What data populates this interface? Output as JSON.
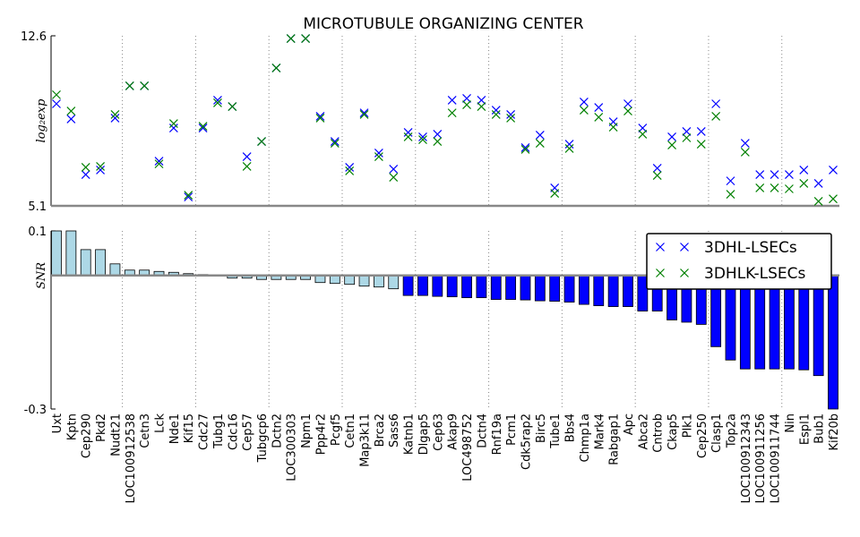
{
  "chart_data": [
    {
      "type": "scatter",
      "title": "MICROTUBULE ORGANIZING CENTER",
      "ylabel": "log₂exp",
      "ylim": [
        5.1,
        12.6
      ],
      "yticks": [
        5.1,
        12.6
      ],
      "legend": "upper right",
      "series": [
        {
          "name": "3DHL-LSECs",
          "color": "#0000ff",
          "values": [
            9.6,
            8.93,
            6.48,
            6.68,
            8.97,
            10.39,
            10.39,
            7.07,
            8.53,
            5.49,
            8.53,
            9.76,
            9.48,
            7.27,
            7.94,
            11.18,
            12.48,
            12.48,
            9.05,
            7.94,
            6.8,
            9.2,
            7.43,
            6.72,
            8.34,
            8.14,
            8.26,
            9.76,
            9.84,
            9.76,
            9.32,
            9.13,
            7.67,
            8.22,
            5.89,
            7.82,
            9.68,
            9.44,
            8.81,
            9.6,
            8.53,
            6.76,
            8.14,
            8.38,
            8.38,
            9.6,
            6.2,
            7.86,
            6.48,
            6.48,
            6.48,
            6.68,
            6.09,
            6.68
          ]
        },
        {
          "name": "3DHLK-LSECs",
          "color": "#008000",
          "values": [
            10.0,
            9.28,
            6.8,
            6.84,
            9.13,
            10.39,
            10.39,
            6.95,
            8.73,
            5.57,
            8.61,
            9.64,
            9.48,
            6.84,
            7.94,
            11.18,
            12.48,
            12.48,
            8.97,
            7.86,
            6.64,
            9.13,
            7.27,
            6.36,
            8.14,
            8.02,
            7.94,
            9.2,
            9.56,
            9.48,
            9.13,
            8.97,
            7.59,
            7.86,
            5.65,
            7.63,
            9.32,
            9.01,
            8.57,
            9.28,
            8.26,
            6.44,
            7.78,
            8.1,
            7.82,
            9.05,
            5.61,
            7.47,
            5.89,
            5.89,
            5.85,
            6.09,
            5.3,
            5.41
          ]
        }
      ]
    },
    {
      "type": "bar",
      "ylabel": "SNR",
      "ylim": [
        -0.3,
        0.1
      ],
      "yticks": [
        -0.3,
        0.1
      ],
      "categories": [
        "Uxt",
        "Kptn",
        "Cep290",
        "Pkd2",
        "Nudt21",
        "LOC100912538",
        "Cetn3",
        "Lck",
        "Nde1",
        "Kif15",
        "Cdc27",
        "Tubg1",
        "Cdc16",
        "Cep57",
        "Tubgcp6",
        "Dctn2",
        "LOC300303",
        "Npm1",
        "Ppp4r2",
        "Pcgf5",
        "Cetn1",
        "Map3k11",
        "Brca2",
        "Sass6",
        "Katnb1",
        "Dlgap5",
        "Cep63",
        "Akap9",
        "LOC498752",
        "Dctn4",
        "Rnf19a",
        "Pcm1",
        "Cdk5rap2",
        "Birc5",
        "Tube1",
        "Bbs4",
        "Chmp1a",
        "Mark4",
        "Rabgap1",
        "Apc",
        "Abca2",
        "Cntrob",
        "Ckap5",
        "Plk1",
        "Cep250",
        "Clasp1",
        "Top2a",
        "LOC100912343",
        "LOC100911256",
        "LOC100911744",
        "Nin",
        "Espl1",
        "Bub1",
        "Kif20b"
      ],
      "values": [
        0.1,
        0.1,
        0.058,
        0.058,
        0.026,
        0.012,
        0.012,
        0.009,
        0.007,
        0.004,
        0.002,
        0.001,
        -0.006,
        -0.006,
        -0.009,
        -0.009,
        -0.009,
        -0.009,
        -0.016,
        -0.018,
        -0.02,
        -0.024,
        -0.026,
        -0.03,
        -0.045,
        -0.045,
        -0.047,
        -0.048,
        -0.05,
        -0.05,
        -0.054,
        -0.054,
        -0.055,
        -0.057,
        -0.058,
        -0.06,
        -0.065,
        -0.068,
        -0.07,
        -0.07,
        -0.08,
        -0.08,
        -0.1,
        -0.105,
        -0.11,
        -0.16,
        -0.19,
        -0.21,
        -0.21,
        -0.21,
        -0.21,
        -0.212,
        -0.225,
        -0.3
      ],
      "colors": [
        "#add8e6",
        "#add8e6",
        "#add8e6",
        "#add8e6",
        "#add8e6",
        "#add8e6",
        "#add8e6",
        "#add8e6",
        "#add8e6",
        "#add8e6",
        "#add8e6",
        "#add8e6",
        "#add8e6",
        "#add8e6",
        "#add8e6",
        "#add8e6",
        "#add8e6",
        "#add8e6",
        "#add8e6",
        "#add8e6",
        "#add8e6",
        "#add8e6",
        "#add8e6",
        "#add8e6",
        "#0000ff",
        "#0000ff",
        "#0000ff",
        "#0000ff",
        "#0000ff",
        "#0000ff",
        "#0000ff",
        "#0000ff",
        "#0000ff",
        "#0000ff",
        "#0000ff",
        "#0000ff",
        "#0000ff",
        "#0000ff",
        "#0000ff",
        "#0000ff",
        "#0000ff",
        "#0000ff",
        "#0000ff",
        "#0000ff",
        "#0000ff",
        "#0000ff",
        "#0000ff",
        "#0000ff",
        "#0000ff",
        "#0000ff",
        "#0000ff",
        "#0000ff",
        "#0000ff",
        "#0000ff"
      ]
    }
  ]
}
